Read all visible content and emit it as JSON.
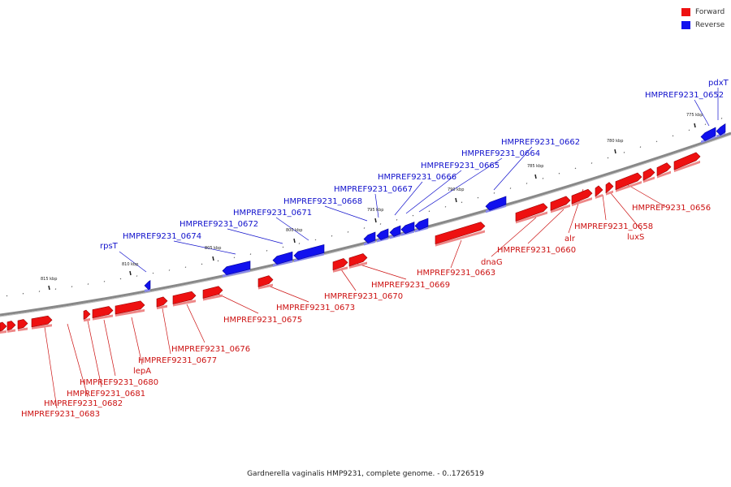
{
  "legend": {
    "forward_label": "Forward",
    "reverse_label": "Reverse",
    "forward_color": "#ee1111",
    "reverse_color": "#1111ee"
  },
  "caption": "Gardnerella vaginalis HMP9231, complete genome. - 0..1726519",
  "scale_labels": [
    "775 kbp",
    "780 kbp",
    "785 kbp",
    "790 kbp",
    "795 kbp",
    "800 kbp",
    "805 kbp",
    "810 kbp",
    "815 kbp"
  ],
  "reverse_labels": [
    "pdxT",
    "HMPREF9231_0652",
    "HMPREF9231_0662",
    "HMPREF9231_0664",
    "HMPREF9231_0665",
    "HMPREF9231_0666",
    "HMPREF9231_0667",
    "HMPREF9231_0668",
    "HMPREF9231_0671",
    "HMPREF9231_0672",
    "HMPREF9231_0674",
    "rpsT"
  ],
  "forward_labels": [
    "HMPREF9231_0656",
    "HMPREF9231_0658",
    "luxS",
    "alr",
    "HMPREF9231_0660",
    "dnaG",
    "HMPREF9231_0663",
    "HMPREF9231_0669",
    "HMPREF9231_0670",
    "HMPREF9231_0673",
    "HMPREF9231_0675",
    "HMPREF9231_0676",
    "HMPREF9231_0677",
    "lepA",
    "HMPREF9231_0680",
    "HMPREF9231_0681",
    "HMPREF9231_0682",
    "HMPREF9231_0683"
  ]
}
